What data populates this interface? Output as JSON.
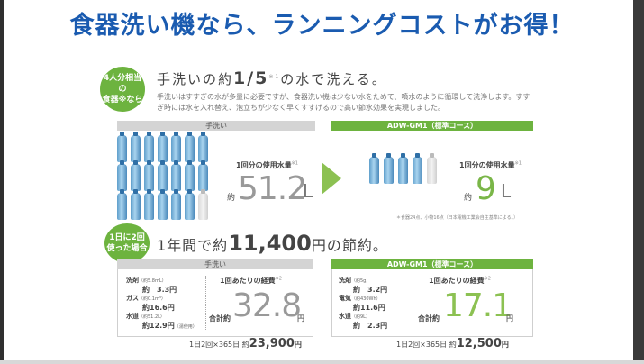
{
  "headline": "食器洗い機なら、ランニングコストがお得！",
  "section1": {
    "badge": "4人分相当の\n食器※なら",
    "lead_pre": "手洗いの約",
    "lead_fraction": "1/5",
    "lead_sup": "※1",
    "lead_post": "の水で洗える。",
    "description": "手洗いはすすぎの水が多量に必要ですが、食器洗い機は少ない水をためて、噴水のように循環して洗浄します。すすぎ時には水を入れ替え、泡立ちが少なく早くすすげるので高い節水効果を実現しました。",
    "left_bar": "手洗い",
    "right_bar": "ADW-GM1（標準コース）",
    "left_use_label": "1回分の使用水量",
    "left_use_sup": "※1",
    "left_yaku": "約",
    "left_value": "51.2",
    "left_unit": "L",
    "right_use_label": "1回分の使用水量",
    "right_use_sup": "※1",
    "right_yaku": "約",
    "right_value": "9",
    "right_unit": "L",
    "note": "＊食器24点、小物16点（日本電機工業会自主基準による。）"
  },
  "section2": {
    "badge": "1日に2回\n使った場合",
    "lead_pre": "1年間で約",
    "lead_num": "11,400",
    "lead_post": "円の節約。",
    "left_bar": "手洗い",
    "right_bar": "ADW-GM1（標準コース）",
    "left_costs": [
      {
        "label": "洗剤",
        "detail": "（約5.8mL）",
        "value": "約　3.3円"
      },
      {
        "label": "ガス",
        "detail": "（約0.1m³）",
        "value": "約16.6円"
      },
      {
        "label": "水道",
        "detail": "（約51.2L）",
        "value": "約12.9円",
        "extra": "（湯使用）"
      }
    ],
    "right_costs": [
      {
        "label": "洗剤",
        "detail": "（約5g）",
        "value": "約　3.2円"
      },
      {
        "label": "電気",
        "detail": "（約430Wh）",
        "value": "約11.6円"
      },
      {
        "label": "水道",
        "detail": "（約9L）",
        "value": "約　2.3円"
      }
    ],
    "per_label": "1回あたりの経費",
    "per_sup": "※2",
    "gokei": "合計約",
    "left_total": "32.8",
    "right_total": "17.1",
    "yen": "円",
    "annual_prefix": "1日2回×365日 約",
    "left_annual": "23,900",
    "right_annual": "12,500",
    "annual_unit": "円"
  }
}
